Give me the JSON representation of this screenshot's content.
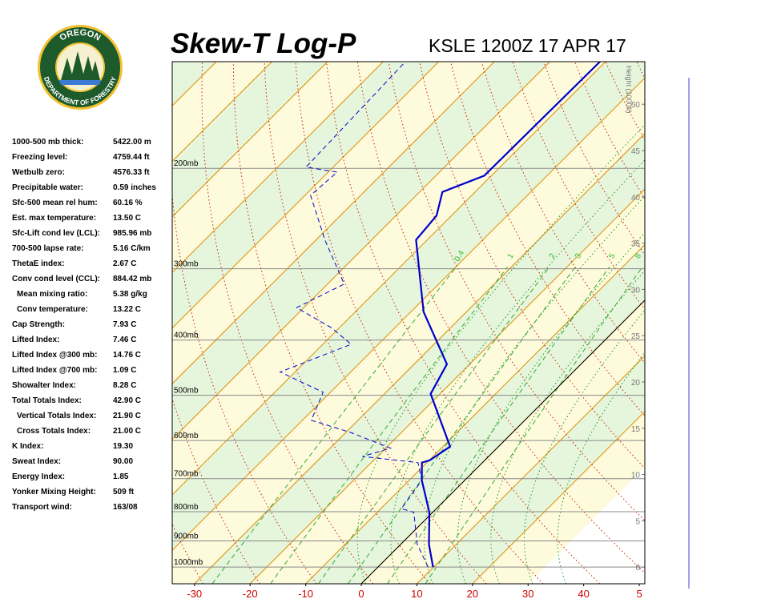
{
  "logo": {
    "top": "OREGON",
    "bottom": "DEPARTMENT OF FORESTRY"
  },
  "stats": [
    [
      "1000-500 mb thick:",
      "5422.00 m"
    ],
    [
      "Freezing level:",
      "4759.44 ft"
    ],
    [
      "Wetbulb zero:",
      "4576.33 ft"
    ],
    [
      "Precipitable water:",
      "0.59 inches"
    ],
    [
      "Sfc-500 mean rel hum:",
      "60.16 %"
    ],
    [
      "Est. max temperature:",
      "13.50 C"
    ],
    [
      "Sfc-Lift cond lev (LCL):",
      "985.96 mb"
    ],
    [
      "700-500 lapse rate:",
      "5.16 C/km"
    ],
    [
      "ThetaE index:",
      "2.67 C"
    ],
    [
      "Conv cond level (CCL):",
      "884.42 mb"
    ],
    [
      "Mean mixing ratio:",
      "5.38 g/kg"
    ],
    [
      "Conv temperature:",
      "13.22 C"
    ],
    [
      "Cap Strength:",
      "7.93 C"
    ],
    [
      "Lifted Index:",
      "7.46 C"
    ],
    [
      "Lifted Index @300 mb:",
      "14.76 C"
    ],
    [
      "Lifted Index @700 mb:",
      "1.09 C"
    ],
    [
      "Showalter Index:",
      "8.28 C"
    ],
    [
      "Total Totals Index:",
      "42.90 C"
    ],
    [
      "Vertical Totals Index:",
      "21.90 C"
    ],
    [
      "Cross Totals Index:",
      "21.00 C"
    ],
    [
      "K Index:",
      "19.30"
    ],
    [
      "Sweat Index:",
      "90.00"
    ],
    [
      "Energy Index:",
      "1.85"
    ],
    [
      "Yonker Mixing Height:",
      "509 ft"
    ],
    [
      "Transport wind:",
      "163/08"
    ]
  ],
  "chart_data": {
    "type": "skewt",
    "title": "Skew-T Log-P",
    "subtitle": "KSLE 1200Z 17 APR 17",
    "xlim": [
      -34,
      51
    ],
    "xticks": [
      -30,
      -20,
      -10,
      0,
      10,
      20,
      30,
      40,
      {
        "value": 50,
        "label": "5"
      }
    ],
    "ylim": [
      1070,
      130
    ],
    "log_y": true,
    "yticks": [
      {
        "value": 1000,
        "label": "1000mb"
      },
      {
        "value": 900,
        "label": "900mb"
      },
      {
        "value": 800,
        "label": "800mb"
      },
      {
        "value": 700,
        "label": "700mb"
      },
      {
        "value": 600,
        "label": "600mb"
      },
      {
        "value": 500,
        "label": "500mb"
      },
      {
        "value": 400,
        "label": "400mb"
      },
      {
        "value": 300,
        "label": "300mb"
      },
      {
        "value": 200,
        "label": "200mb"
      }
    ],
    "y2label": "Height (1000ft)",
    "y2lim": [
      -1.8,
      54.6
    ],
    "y2ticks": [
      0,
      5,
      10,
      15,
      20,
      25,
      30,
      35,
      40,
      45,
      50
    ],
    "mixing_ratios": [
      0.4,
      1,
      2,
      3,
      5,
      8
    ],
    "series": [
      {
        "color": "#0000cc",
        "dashed": false,
        "pressure": [
          1000,
          913,
          802,
          705,
          656,
          650,
          615,
          497,
          441,
          357,
          267,
          242,
          220,
          206,
          130
        ],
        "values": [
          9.9,
          5.1,
          -0.6,
          -7.7,
          -10.9,
          -9.9,
          -8.7,
          -21.7,
          -24.1,
          -37.7,
          -52,
          -52.7,
          -55.9,
          -51.3,
          -51
        ]
      },
      {
        "color": "#0000cc",
        "dashed": true,
        "pressure": [
          1000,
          913,
          802,
          790,
          705,
          656,
          640,
          619,
          581,
          553,
          494,
          455,
          407,
          381,
          351,
          319,
          267,
          223,
          203,
          199,
          130
        ],
        "values": [
          9,
          3,
          -3.4,
          -6.3,
          -7.7,
          -11.6,
          -22.7,
          -19.1,
          -29.1,
          -38.4,
          -41.3,
          -52.7,
          -44.9,
          -51.3,
          -61.3,
          -57,
          -68.4,
          -79,
          -78.4,
          -84.9,
          -86
        ]
      }
    ]
  }
}
